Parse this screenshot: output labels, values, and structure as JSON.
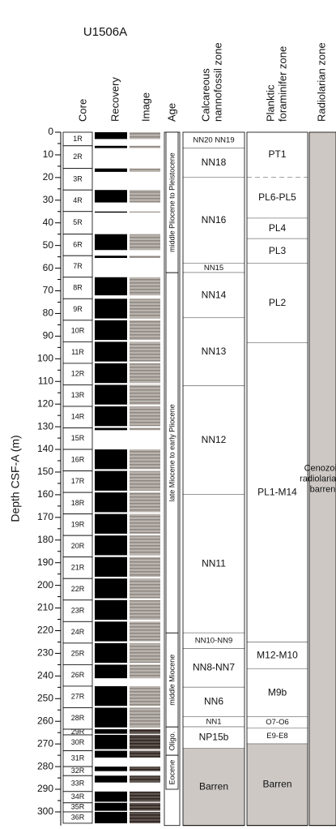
{
  "header": {
    "site": "U1506A",
    "columns": {
      "core": "Core",
      "recovery": "Recovery",
      "image": "Image",
      "age": "Age",
      "nannofossil": [
        "Calcareous",
        "nannofossil zone"
      ],
      "foraminifer": [
        "Planktic",
        "foraminifer zone"
      ],
      "radiolarian": "Radiolarian zone"
    }
  },
  "depth_axis": {
    "label": "Depth CSF-A (m)",
    "lim": [
      0,
      306
    ],
    "ticks": [
      0,
      10,
      20,
      30,
      40,
      50,
      60,
      70,
      80,
      90,
      100,
      110,
      120,
      130,
      140,
      150,
      160,
      170,
      180,
      190,
      200,
      210,
      220,
      230,
      240,
      250,
      260,
      270,
      280,
      290,
      300
    ]
  },
  "cores": [
    {
      "label": "1R",
      "top": 0,
      "bottom": 6,
      "recovered": [
        0,
        3
      ]
    },
    {
      "label": "2R",
      "top": 6,
      "bottom": 16,
      "recovered": [
        6,
        7
      ]
    },
    {
      "label": "3R",
      "top": 16,
      "bottom": 25.5,
      "recovered": [
        16,
        17.5
      ]
    },
    {
      "label": "4R",
      "top": 25.5,
      "bottom": 35,
      "recovered": [
        25.5,
        31
      ]
    },
    {
      "label": "5R",
      "top": 35,
      "bottom": 45,
      "recovered": [
        35,
        35.5
      ]
    },
    {
      "label": "6R",
      "top": 45,
      "bottom": 54.5,
      "recovered": [
        45,
        52
      ]
    },
    {
      "label": "7R",
      "top": 54.5,
      "bottom": 64,
      "recovered": [
        54.5,
        55.5
      ]
    },
    {
      "label": "8R",
      "top": 64,
      "bottom": 73.5,
      "recovered": [
        64,
        72
      ]
    },
    {
      "label": "9R",
      "top": 73.5,
      "bottom": 83,
      "recovered": [
        73.5,
        82.2
      ]
    },
    {
      "label": "10R",
      "top": 83,
      "bottom": 92.5,
      "recovered": [
        83,
        91.7
      ]
    },
    {
      "label": "11R",
      "top": 92.5,
      "bottom": 102,
      "recovered": [
        92.5,
        101.2
      ]
    },
    {
      "label": "12R",
      "top": 102,
      "bottom": 111.5,
      "recovered": [
        102,
        110.7
      ]
    },
    {
      "label": "13R",
      "top": 111.5,
      "bottom": 121,
      "recovered": [
        111.5,
        120.2
      ]
    },
    {
      "label": "14R",
      "top": 121,
      "bottom": 130.5,
      "recovered": [
        121,
        129.7
      ]
    },
    {
      "label": "15R",
      "top": 130.5,
      "bottom": 140,
      "recovered": [
        130.5,
        131.5
      ]
    },
    {
      "label": "16R",
      "top": 140,
      "bottom": 149.5,
      "recovered": [
        140,
        148.7
      ]
    },
    {
      "label": "17R",
      "top": 149.5,
      "bottom": 159,
      "recovered": [
        149.5,
        158.2
      ]
    },
    {
      "label": "18R",
      "top": 159,
      "bottom": 168.5,
      "recovered": [
        159,
        167.7
      ]
    },
    {
      "label": "19R",
      "top": 168.5,
      "bottom": 178,
      "recovered": [
        168.5,
        177.2
      ]
    },
    {
      "label": "20R",
      "top": 178,
      "bottom": 187.5,
      "recovered": [
        178,
        186.7
      ]
    },
    {
      "label": "21R",
      "top": 187.5,
      "bottom": 197,
      "recovered": [
        187.5,
        196.2
      ]
    },
    {
      "label": "22R",
      "top": 197,
      "bottom": 206.5,
      "recovered": [
        197,
        205.7
      ]
    },
    {
      "label": "23R",
      "top": 206.5,
      "bottom": 216,
      "recovered": [
        206.5,
        215.2
      ]
    },
    {
      "label": "24R",
      "top": 216,
      "bottom": 225.5,
      "recovered": [
        216,
        224.7
      ]
    },
    {
      "label": "25R",
      "top": 225.5,
      "bottom": 235,
      "recovered": [
        225.5,
        234.2
      ]
    },
    {
      "label": "26R",
      "top": 235,
      "bottom": 244.5,
      "recovered": [
        235,
        241
      ]
    },
    {
      "label": "27R",
      "top": 244.5,
      "bottom": 254,
      "recovered": [
        244.5,
        253.2
      ]
    },
    {
      "label": "28R",
      "top": 254,
      "bottom": 263.5,
      "recovered": [
        254,
        262.7
      ]
    },
    {
      "label": "29R",
      "top": 263.5,
      "bottom": 266,
      "recovered": [
        263.5,
        265.5
      ]
    },
    {
      "label": "30R",
      "top": 266,
      "bottom": 273,
      "recovered": [
        266,
        272.3
      ]
    },
    {
      "label": "31R",
      "top": 273,
      "bottom": 280,
      "recovered": [
        273,
        276
      ]
    },
    {
      "label": "32R",
      "top": 280,
      "bottom": 284,
      "recovered": [
        280,
        282
      ]
    },
    {
      "label": "33R",
      "top": 284,
      "bottom": 291,
      "recovered": [
        284,
        287
      ]
    },
    {
      "label": "34R",
      "top": 291,
      "bottom": 296,
      "recovered": [
        291,
        295.5
      ]
    },
    {
      "label": "35R",
      "top": 296,
      "bottom": 300,
      "recovered": [
        296,
        299.5
      ]
    },
    {
      "label": "36R",
      "top": 300,
      "bottom": 305,
      "recovered": [
        300,
        305
      ]
    }
  ],
  "ages": [
    {
      "label": "middle Pliocene to Pleistocene",
      "top": 0,
      "bottom": 62
    },
    {
      "label": "late Miocene to early Pliocene",
      "top": 62,
      "bottom": 221
    },
    {
      "label": "middle Miocene",
      "top": 221,
      "bottom": 262.5
    },
    {
      "label": "Oligo.",
      "top": 262.5,
      "bottom": 275
    },
    {
      "label": "Eocene",
      "top": 275,
      "bottom": 290
    }
  ],
  "nannofossil_zones": [
    {
      "label": "NN20 NN19",
      "top": 0,
      "bottom": 7
    },
    {
      "label": "NN18",
      "top": 7,
      "bottom": 20
    },
    {
      "label": "NN16",
      "top": 20,
      "bottom": 58
    },
    {
      "label": "NN15",
      "top": 58,
      "bottom": 62
    },
    {
      "label": "NN14",
      "top": 62,
      "bottom": 82
    },
    {
      "label": "NN13",
      "top": 82,
      "bottom": 112
    },
    {
      "label": "NN12",
      "top": 112,
      "bottom": 160
    },
    {
      "label": "NN11",
      "top": 160,
      "bottom": 221
    },
    {
      "label": "NN10-NN9",
      "top": 221,
      "bottom": 228
    },
    {
      "label": "NN8-NN7",
      "top": 228,
      "bottom": 245
    },
    {
      "label": "NN6",
      "top": 245,
      "bottom": 258
    },
    {
      "label": "NN1",
      "top": 258,
      "bottom": 262.5
    },
    {
      "label": "NP15b",
      "top": 262.5,
      "bottom": 272
    },
    {
      "label": "Barren",
      "top": 272,
      "bottom": 306,
      "fill": "#cdc8c4"
    }
  ],
  "foraminifer_zones": [
    {
      "label": "PT1",
      "top": 0,
      "bottom": 20,
      "dashed": true
    },
    {
      "label": "PL6-PL5",
      "top": 20,
      "bottom": 38
    },
    {
      "label": "PL4",
      "top": 38,
      "bottom": 47
    },
    {
      "label": "PL3",
      "top": 47,
      "bottom": 58
    },
    {
      "label": "PL2",
      "top": 58,
      "bottom": 93
    },
    {
      "label": "PL1-M14",
      "top": 93,
      "bottom": 225
    },
    {
      "label": "M12-M10",
      "top": 225,
      "bottom": 237
    },
    {
      "label": "M9b",
      "top": 237,
      "bottom": 258
    },
    {
      "label": "O7-O6",
      "top": 258,
      "bottom": 263
    },
    {
      "label": "E9-E8",
      "top": 263,
      "bottom": 270
    },
    {
      "label": "Barren",
      "top": 270,
      "bottom": 306,
      "fill": "#cdc8c4"
    }
  ],
  "radiolarian_zones": [
    {
      "lines": [
        "Cenozoic",
        "radiolarians",
        "barren"
      ],
      "top": 0,
      "bottom": 306,
      "fill": "#cdc8c4"
    }
  ]
}
